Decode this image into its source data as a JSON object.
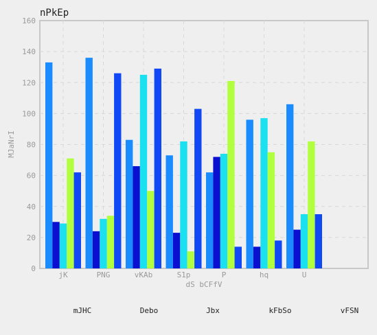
{
  "chart_data": {
    "type": "bar",
    "title": "nPkEp",
    "xlabel": "dS bCFfV",
    "ylabel": "MJaNrI",
    "ylim": [
      0,
      160
    ],
    "yticks": [
      0,
      20,
      40,
      60,
      80,
      100,
      120,
      140,
      160
    ],
    "grid": true,
    "legend_position": "bottom",
    "categories": [
      "jK",
      "PNG",
      "vKAb",
      "S1p",
      "P",
      "hq",
      "U"
    ],
    "series": [
      {
        "name": "mJHC",
        "color": "#1a8cff",
        "values": [
          133,
          136,
          83,
          73,
          62,
          96,
          106
        ]
      },
      {
        "name": "Debo",
        "color": "#0a0fd0",
        "values": [
          30,
          24,
          66,
          23,
          72,
          14,
          25
        ]
      },
      {
        "name": "Jbx",
        "color": "#1ae0f0",
        "values": [
          29,
          32,
          125,
          82,
          74,
          97,
          35
        ]
      },
      {
        "name": "kFbSo",
        "color": "#b2ff40",
        "values": [
          71,
          34,
          50,
          11,
          121,
          75,
          82
        ]
      },
      {
        "name": "vFSN",
        "color": "#1048f5",
        "values": [
          62,
          126,
          129,
          103,
          14,
          18,
          35
        ]
      }
    ]
  }
}
